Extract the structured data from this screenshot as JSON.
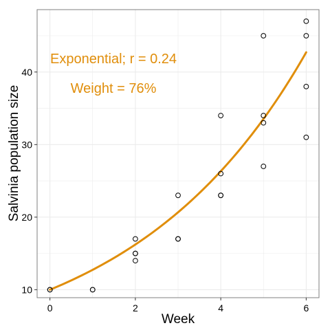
{
  "chart_data": {
    "type": "scatter",
    "title": "",
    "xlabel": "Week",
    "ylabel": "Salvinia population size",
    "xlim": [
      -0.3,
      6.3
    ],
    "ylim": [
      8.9,
      48.6
    ],
    "xticks": [
      0,
      2,
      4,
      6
    ],
    "yticks": [
      10,
      20,
      30,
      40
    ],
    "x_minor_grid": [
      1,
      3,
      5
    ],
    "y_minor_grid": [
      15,
      25,
      35,
      45
    ],
    "grid": true,
    "legend": "none",
    "series": [
      {
        "points": [
          {
            "x": 0,
            "y": 10
          },
          {
            "x": 0,
            "y": 10
          },
          {
            "x": 1,
            "y": 10
          },
          {
            "x": 1,
            "y": 10
          },
          {
            "x": 2,
            "y": 17
          },
          {
            "x": 2,
            "y": 15
          },
          {
            "x": 2,
            "y": 15
          },
          {
            "x": 2,
            "y": 14
          },
          {
            "x": 3,
            "y": 23
          },
          {
            "x": 3,
            "y": 17
          },
          {
            "x": 3,
            "y": 17
          },
          {
            "x": 4,
            "y": 34
          },
          {
            "x": 4,
            "y": 26
          },
          {
            "x": 4,
            "y": 23
          },
          {
            "x": 4,
            "y": 23
          },
          {
            "x": 5,
            "y": 45
          },
          {
            "x": 5,
            "y": 34
          },
          {
            "x": 5,
            "y": 33
          },
          {
            "x": 5,
            "y": 27
          },
          {
            "x": 6,
            "y": 47
          },
          {
            "x": 6,
            "y": 45
          },
          {
            "x": 6,
            "y": 38
          },
          {
            "x": 6,
            "y": 31
          }
        ]
      }
    ],
    "fit": {
      "model": "exponential",
      "a": 10.0,
      "b": 0.242,
      "x_range": [
        0,
        6
      ]
    },
    "annotations": [
      {
        "text": "Exponential; r = 0.24"
      },
      {
        "text": "Weight = 76%"
      }
    ],
    "colors": {
      "fit_line": "#E08E0B",
      "annotation": "#E08E0B",
      "points": "#000000",
      "grid": "#EBEBEB",
      "panel_border": "#7F7F7F"
    }
  }
}
